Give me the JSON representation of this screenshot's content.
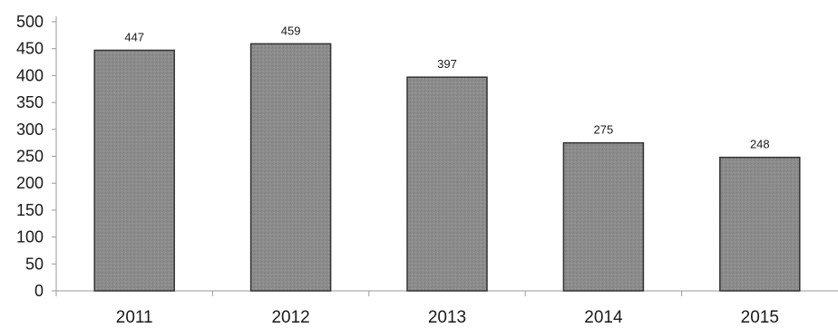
{
  "chart_data": {
    "type": "bar",
    "categories": [
      "2011",
      "2012",
      "2013",
      "2014",
      "2015"
    ],
    "values": [
      447,
      459,
      397,
      275,
      248
    ],
    "data_labels": [
      "447",
      "459",
      "397",
      "275",
      "248"
    ],
    "title": "",
    "xlabel": "",
    "ylabel": "",
    "ylim": [
      0,
      500
    ],
    "yticks": [
      0,
      50,
      100,
      150,
      200,
      250,
      300,
      350,
      400,
      450,
      500
    ],
    "ytick_labels": [
      "0",
      "50",
      "100",
      "150",
      "200",
      "250",
      "300",
      "350",
      "400",
      "450",
      "500"
    ],
    "grid": false,
    "legend": "none",
    "colors": {
      "bar_fill": "#8c8c8c",
      "bar_stroke": "#333333",
      "axis": "#9a9a9a"
    }
  }
}
